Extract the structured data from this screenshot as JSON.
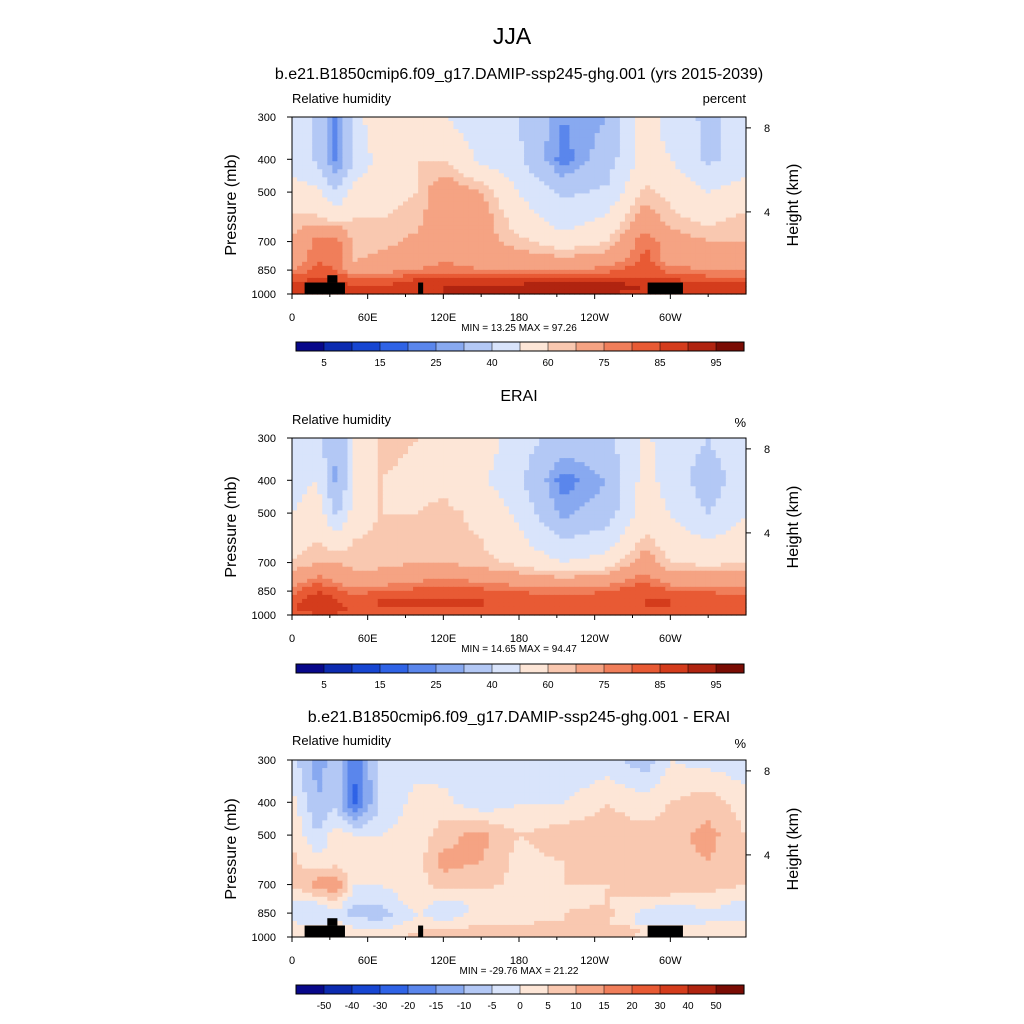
{
  "figure": {
    "title": "JJA"
  },
  "palette": {
    "abs": [
      "#08088a",
      "#0c2bb0",
      "#1746d2",
      "#2f63e6",
      "#5a86ec",
      "#88a9f0",
      "#b3c8f5",
      "#d9e4fb",
      "#fde6d7",
      "#f9c8b0",
      "#f5a383",
      "#f07e5a",
      "#e85a34",
      "#d43c1c",
      "#b02410",
      "#7a0c04"
    ],
    "diff": [
      "#08088a",
      "#0c2bb0",
      "#1746d2",
      "#2f63e6",
      "#5a86ec",
      "#88a9f0",
      "#b3c8f5",
      "#d9e4fb",
      "#fde6d7",
      "#f9c8b0",
      "#f5a383",
      "#f07e5a",
      "#e85a34",
      "#d43c1c",
      "#b02410",
      "#7a0c04"
    ]
  },
  "panels": [
    {
      "title": "b.e21.B1850cmip6.f09_g17.DAMIP-ssp245-ghg.001 (yrs 2015-2039)",
      "left_label": "Relative humidity",
      "right_label": "percent",
      "stats": "MIN =  13.25  MAX =  97.26",
      "ylabel": "Pressure (mb)",
      "ylabel_right": "Height (km)",
      "yticks": [
        "300",
        "400",
        "500",
        "700",
        "850",
        "1000"
      ],
      "yticks_right": [
        "8",
        "4"
      ],
      "xticks": [
        "0",
        "60E",
        "120E",
        "180",
        "120W",
        "60W"
      ],
      "colorbar_labels": [
        "5",
        "15",
        "25",
        "40",
        "60",
        "75",
        "85",
        "95"
      ]
    },
    {
      "title": "ERAI",
      "left_label": "Relative humidity",
      "right_label": "%",
      "stats": "MIN =  14.65  MAX =  94.47",
      "ylabel": "Pressure (mb)",
      "ylabel_right": "Height (km)",
      "yticks": [
        "300",
        "400",
        "500",
        "700",
        "850",
        "1000"
      ],
      "yticks_right": [
        "8",
        "4"
      ],
      "xticks": [
        "0",
        "60E",
        "120E",
        "180",
        "120W",
        "60W"
      ],
      "colorbar_labels": [
        "5",
        "15",
        "25",
        "40",
        "60",
        "75",
        "85",
        "95"
      ]
    },
    {
      "title": "b.e21.B1850cmip6.f09_g17.DAMIP-ssp245-ghg.001 - ERAI",
      "left_label": "Relative humidity",
      "right_label": "%",
      "stats": "MIN = -29.76  MAX =  21.22",
      "ylabel": "Pressure (mb)",
      "ylabel_right": "Height (km)",
      "yticks": [
        "300",
        "400",
        "500",
        "700",
        "850",
        "1000"
      ],
      "yticks_right": [
        "8",
        "4"
      ],
      "xticks": [
        "0",
        "60E",
        "120E",
        "180",
        "120W",
        "60W"
      ],
      "colorbar_labels": [
        "-50",
        "-40",
        "-30",
        "-20",
        "-15",
        "-10",
        "-5",
        "0",
        "5",
        "10",
        "15",
        "20",
        "30",
        "40",
        "50"
      ]
    }
  ],
  "chart_data": [
    {
      "type": "heatmap",
      "title": "b.e21.B1850cmip6.f09_g17.DAMIP-ssp245-ghg.001 (yrs 2015-2039)",
      "xlabel": "",
      "ylabel": "Pressure (mb)",
      "ylabel_right": "Height (km)",
      "units": "percent",
      "xlim": [
        0,
        360
      ],
      "ylim": [
        1000,
        300
      ],
      "log_y": true,
      "x_ticks": [
        0,
        60,
        120,
        180,
        240,
        300
      ],
      "levels": [
        5,
        10,
        15,
        20,
        25,
        30,
        40,
        50,
        60,
        65,
        75,
        80,
        85,
        90,
        95
      ],
      "min": 13.25,
      "max": 97.26,
      "x": [
        0,
        20,
        35,
        50,
        70,
        100,
        120,
        150,
        180,
        215,
        250,
        280,
        300,
        330,
        360
      ],
      "pressure": [
        300,
        400,
        500,
        600,
        700,
        800,
        850,
        900,
        950,
        1000
      ],
      "values": [
        [
          45,
          38,
          22,
          45,
          60,
          58,
          50,
          45,
          40,
          25,
          30,
          55,
          45,
          38,
          45
        ],
        [
          45,
          38,
          22,
          40,
          55,
          60,
          60,
          48,
          42,
          22,
          35,
          55,
          50,
          38,
          45
        ],
        [
          55,
          52,
          40,
          55,
          58,
          60,
          72,
          65,
          50,
          38,
          42,
          62,
          58,
          50,
          55
        ],
        [
          62,
          62,
          58,
          60,
          60,
          62,
          75,
          70,
          55,
          45,
          52,
          70,
          62,
          58,
          62
        ],
        [
          65,
          78,
          80,
          62,
          62,
          68,
          72,
          68,
          62,
          55,
          60,
          80,
          70,
          65,
          65
        ],
        [
          70,
          80,
          78,
          65,
          68,
          72,
          75,
          72,
          70,
          68,
          70,
          82,
          72,
          70,
          70
        ],
        [
          75,
          82,
          80,
          70,
          72,
          75,
          78,
          75,
          75,
          75,
          78,
          85,
          78,
          75,
          75
        ],
        [
          82,
          85,
          85,
          80,
          80,
          85,
          85,
          85,
          85,
          85,
          85,
          85,
          85,
          82,
          82
        ],
        [
          88,
          90,
          90,
          85,
          85,
          90,
          90,
          92,
          92,
          95,
          95,
          90,
          88,
          88,
          88
        ],
        [
          85,
          85,
          85,
          85,
          85,
          88,
          90,
          90,
          90,
          90,
          90,
          85,
          85,
          85,
          85
        ]
      ]
    },
    {
      "type": "heatmap",
      "title": "ERAI",
      "xlabel": "",
      "ylabel": "Pressure (mb)",
      "ylabel_right": "Height (km)",
      "units": "%",
      "xlim": [
        0,
        360
      ],
      "ylim": [
        1000,
        300
      ],
      "log_y": true,
      "x_ticks": [
        0,
        60,
        120,
        180,
        240,
        300
      ],
      "levels": [
        5,
        10,
        15,
        20,
        25,
        30,
        40,
        50,
        60,
        65,
        75,
        80,
        85,
        90,
        95
      ],
      "min": 14.65,
      "max": 94.47,
      "x": [
        0,
        20,
        35,
        50,
        70,
        100,
        120,
        150,
        180,
        215,
        250,
        280,
        300,
        330,
        360
      ],
      "pressure": [
        300,
        400,
        500,
        600,
        700,
        800,
        850,
        900,
        950,
        1000
      ],
      "values": [
        [
          48,
          45,
          30,
          50,
          62,
          60,
          58,
          55,
          45,
          35,
          38,
          52,
          45,
          40,
          48
        ],
        [
          45,
          50,
          28,
          50,
          60,
          58,
          58,
          52,
          42,
          22,
          30,
          55,
          45,
          35,
          45
        ],
        [
          50,
          58,
          38,
          55,
          60,
          60,
          62,
          58,
          48,
          28,
          35,
          55,
          50,
          40,
          50
        ],
        [
          55,
          60,
          55,
          60,
          62,
          62,
          62,
          60,
          52,
          40,
          45,
          62,
          55,
          50,
          55
        ],
        [
          60,
          65,
          65,
          62,
          62,
          65,
          65,
          62,
          58,
          50,
          55,
          70,
          60,
          58,
          60
        ],
        [
          72,
          80,
          75,
          70,
          72,
          75,
          78,
          75,
          72,
          70,
          72,
          80,
          72,
          72,
          72
        ],
        [
          78,
          85,
          82,
          78,
          80,
          82,
          85,
          82,
          80,
          78,
          80,
          85,
          82,
          80,
          78
        ],
        [
          82,
          88,
          85,
          82,
          85,
          85,
          85,
          85,
          82,
          82,
          82,
          85,
          85,
          82,
          82
        ],
        [
          85,
          88,
          86,
          85,
          85,
          85,
          85,
          85,
          85,
          85,
          85,
          85,
          85,
          85,
          85
        ],
        [
          82,
          85,
          85,
          82,
          82,
          82,
          82,
          82,
          82,
          82,
          82,
          82,
          82,
          82,
          82
        ]
      ]
    },
    {
      "type": "heatmap",
      "title": "b.e21.B1850cmip6.f09_g17.DAMIP-ssp245-ghg.001 - ERAI",
      "xlabel": "",
      "ylabel": "Pressure (mb)",
      "ylabel_right": "Height (km)",
      "units": "%",
      "xlim": [
        0,
        360
      ],
      "ylim": [
        1000,
        300
      ],
      "log_y": true,
      "x_ticks": [
        0,
        60,
        120,
        180,
        240,
        300
      ],
      "levels": [
        -50,
        -40,
        -30,
        -20,
        -15,
        -10,
        -5,
        0,
        5,
        10,
        15,
        20,
        30,
        40,
        50
      ],
      "min": -29.76,
      "max": 21.22,
      "x": [
        0,
        20,
        35,
        50,
        70,
        100,
        120,
        150,
        180,
        215,
        250,
        280,
        300,
        330,
        360
      ],
      "pressure": [
        300,
        400,
        500,
        600,
        700,
        800,
        850,
        900,
        950,
        1000
      ],
      "values": [
        [
          -3,
          -12,
          -8,
          -18,
          -3,
          -2,
          -3,
          -4,
          -2,
          -5,
          -3,
          -8,
          0,
          -2,
          -3
        ],
        [
          2,
          -10,
          -6,
          -22,
          -4,
          2,
          2,
          -4,
          0,
          0,
          5,
          2,
          5,
          8,
          2
        ],
        [
          5,
          -5,
          3,
          0,
          0,
          2,
          8,
          12,
          5,
          8,
          8,
          7,
          8,
          12,
          5
        ],
        [
          6,
          2,
          3,
          2,
          0,
          3,
          12,
          10,
          3,
          5,
          7,
          8,
          8,
          10,
          6
        ],
        [
          5,
          13,
          15,
          0,
          0,
          3,
          7,
          6,
          4,
          5,
          5,
          10,
          10,
          7,
          5
        ],
        [
          -2,
          -1,
          3,
          -5,
          -4,
          3,
          -3,
          2,
          2,
          4,
          5,
          2,
          0,
          2,
          -2
        ],
        [
          -3,
          -3,
          -2,
          -8,
          -8,
          0,
          -4,
          2,
          2,
          5,
          7,
          -2,
          -5,
          -2,
          -3
        ],
        [
          0,
          -3,
          0,
          -2,
          -5,
          2,
          0,
          3,
          4,
          5,
          5,
          -3,
          -5,
          0,
          0
        ],
        [
          3,
          2,
          4,
          0,
          0,
          5,
          5,
          7,
          7,
          10,
          10,
          5,
          3,
          3,
          3
        ],
        [
          3,
          0,
          0,
          3,
          3,
          6,
          8,
          8,
          8,
          8,
          8,
          3,
          3,
          3,
          3
        ]
      ]
    }
  ]
}
